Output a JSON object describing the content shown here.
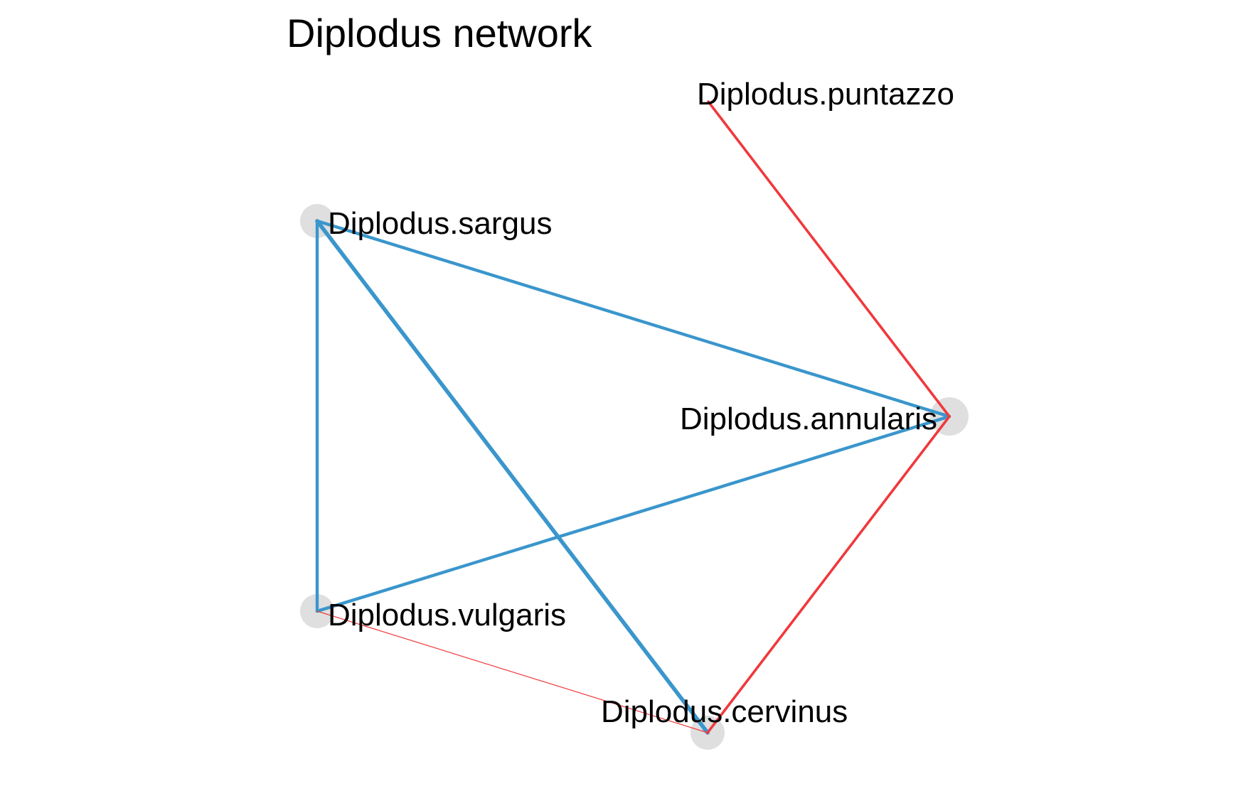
{
  "title": "Diplodus network",
  "colors": {
    "positive_edge": "#3a96cc",
    "negative_edge": "#f0393c",
    "node_fill": "#d9d9d9",
    "background": "#ffffff",
    "text": "#000000"
  },
  "nodes": [
    {
      "id": "puntazzo",
      "label": "Diplodus.puntazzo",
      "marker_visible": false
    },
    {
      "id": "sargus",
      "label": "Diplodus.sargus",
      "marker_visible": true
    },
    {
      "id": "annularis",
      "label": "Diplodus.annularis",
      "marker_visible": true
    },
    {
      "id": "vulgaris",
      "label": "Diplodus.vulgaris",
      "marker_visible": true
    },
    {
      "id": "cervinus",
      "label": "Diplodus.cervinus",
      "marker_visible": true
    }
  ],
  "edges": [
    {
      "from": "sargus",
      "to": "annularis",
      "sign": "positive",
      "strength": "strong"
    },
    {
      "from": "sargus",
      "to": "vulgaris",
      "sign": "positive",
      "strength": "strong"
    },
    {
      "from": "sargus",
      "to": "cervinus",
      "sign": "positive",
      "strength": "strongest"
    },
    {
      "from": "vulgaris",
      "to": "annularis",
      "sign": "positive",
      "strength": "strong"
    },
    {
      "from": "puntazzo",
      "to": "annularis",
      "sign": "negative",
      "strength": "medium"
    },
    {
      "from": "annularis",
      "to": "cervinus",
      "sign": "negative",
      "strength": "medium"
    },
    {
      "from": "vulgaris",
      "to": "cervinus",
      "sign": "negative",
      "strength": "weak"
    }
  ]
}
